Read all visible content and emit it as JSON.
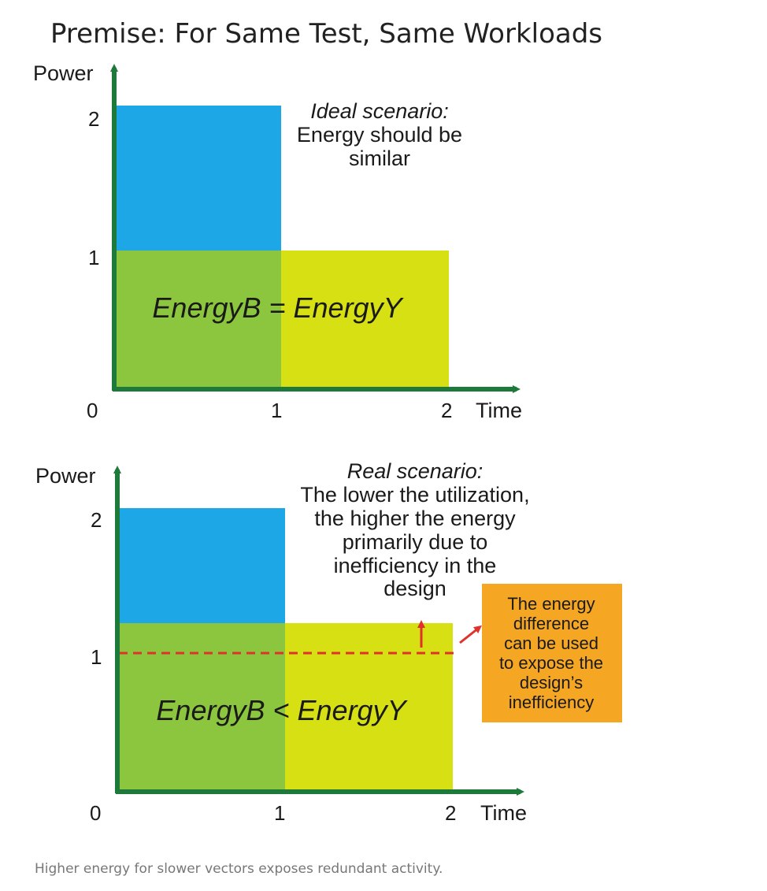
{
  "title": "Premise: For Same Test, Same Workloads",
  "caption": "Higher energy for slower vectors exposes redundant activity.",
  "colors": {
    "axis": "#1e7a3a",
    "blue": "#1ea7e6",
    "green": "#8cc63f",
    "yellow": "#d6e012",
    "dashed": "#e0312a",
    "note_fill": "#f5a623"
  },
  "top_chart": {
    "y_axis_label": "Power",
    "x_axis_label": "Time",
    "origin_label": "0",
    "y_ticks": [
      "1",
      "2"
    ],
    "x_ticks": [
      "1",
      "2"
    ],
    "heading": "Ideal scenario:",
    "body_lines": [
      "Energy should be",
      "similar"
    ],
    "equation": "EnergyB = EnergyY"
  },
  "bottom_chart": {
    "y_axis_label": "Power",
    "x_axis_label": "Time",
    "origin_label": "0",
    "y_ticks": [
      "1",
      "2"
    ],
    "x_ticks": [
      "1",
      "2"
    ],
    "heading": "Real scenario:",
    "body_lines": [
      "The lower the utilization,",
      "the higher the energy",
      "primarily due to",
      "inefficiency in the",
      "design"
    ],
    "equation": "EnergyB < EnergyY",
    "note_lines": [
      "The energy",
      "difference",
      "can be used",
      "to expose the",
      "design’s",
      "inefficiency"
    ]
  }
}
